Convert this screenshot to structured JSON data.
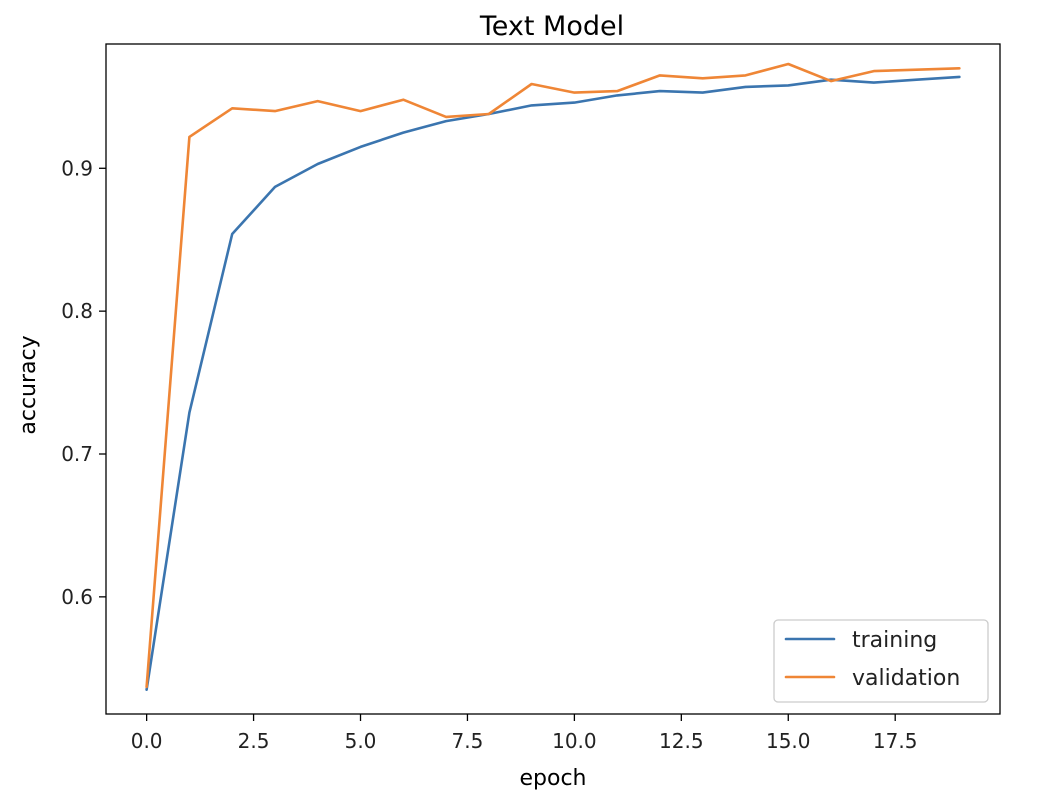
{
  "chart_data": {
    "type": "line",
    "title": "Text Model",
    "xlabel": "epoch",
    "ylabel": "accuracy",
    "xlim": [
      -0.95,
      19.95
    ],
    "ylim": [
      0.518,
      0.987
    ],
    "xticks": [
      0.0,
      2.5,
      5.0,
      7.5,
      10.0,
      12.5,
      15.0,
      17.5
    ],
    "xtick_labels": [
      "0.0",
      "2.5",
      "5.0",
      "7.5",
      "10.0",
      "12.5",
      "15.0",
      "17.5"
    ],
    "yticks": [
      0.6,
      0.7,
      0.8,
      0.9
    ],
    "ytick_labels": [
      "0.6",
      "0.7",
      "0.8",
      "0.9"
    ],
    "grid": false,
    "legend_position": "lower-right",
    "x": [
      0,
      1,
      2,
      3,
      4,
      5,
      6,
      7,
      8,
      9,
      10,
      11,
      12,
      13,
      14,
      15,
      16,
      17,
      18,
      19
    ],
    "series": [
      {
        "name": "training",
        "color": "#3b75af",
        "values": [
          0.535,
          0.729,
          0.854,
          0.887,
          0.903,
          0.915,
          0.925,
          0.933,
          0.938,
          0.944,
          0.946,
          0.951,
          0.954,
          0.953,
          0.957,
          0.958,
          0.962,
          0.96,
          0.962,
          0.964
        ]
      },
      {
        "name": "validation",
        "color": "#ef8636",
        "values": [
          0.537,
          0.922,
          0.942,
          0.94,
          0.947,
          0.94,
          0.948,
          0.936,
          0.938,
          0.959,
          0.953,
          0.954,
          0.965,
          0.963,
          0.965,
          0.973,
          0.961,
          0.968,
          0.969,
          0.97
        ]
      }
    ]
  }
}
